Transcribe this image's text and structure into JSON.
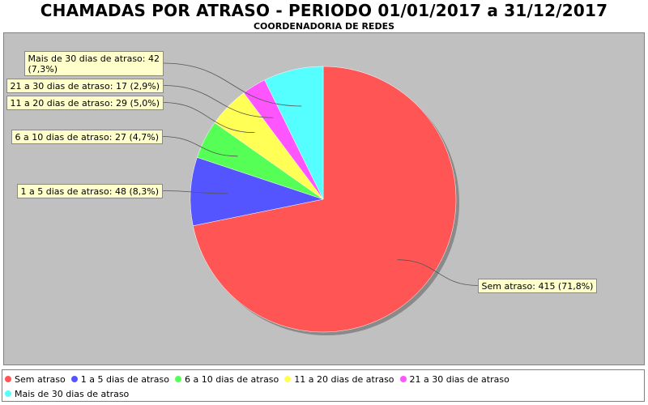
{
  "chart_data": {
    "type": "pie",
    "title": "CHAMADAS POR ATRASO - PERIODO 01/01/2017 a 31/12/2017",
    "subtitle": "COORDENADORIA DE REDES",
    "legend_position": "bottom",
    "slices": [
      {
        "name": "Sem atraso",
        "value": 415,
        "pct": "71,8%",
        "color": "#ff5555",
        "label_lines": [
          "Sem atraso: 415 (71,8%)"
        ]
      },
      {
        "name": "1 a 5 dias de atraso",
        "value": 48,
        "pct": "8,3%",
        "color": "#5555ff",
        "label_lines": [
          "1 a 5 dias de atraso: 48 (8,3%)"
        ]
      },
      {
        "name": "6 a 10 dias de atraso",
        "value": 27,
        "pct": "4,7%",
        "color": "#55ff55",
        "label_lines": [
          "6 a 10 dias de atraso: 27 (4,7%)"
        ]
      },
      {
        "name": "11 a 20 dias de atraso",
        "value": 29,
        "pct": "5,0%",
        "color": "#ffff55",
        "label_lines": [
          "11 a 20 dias de atraso: 29 (5,0%)"
        ]
      },
      {
        "name": "21 a 30 dias de atraso",
        "value": 17,
        "pct": "2,9%",
        "color": "#ff55ff",
        "label_lines": [
          "21 a 30 dias de atraso: 17 (2,9%)"
        ]
      },
      {
        "name": "Mais de 30 dias de atraso",
        "value": 42,
        "pct": "7,3%",
        "color": "#55ffff",
        "label_lines": [
          "Mais de 30 dias de atraso: 42",
          "(7,3%)"
        ]
      }
    ]
  }
}
